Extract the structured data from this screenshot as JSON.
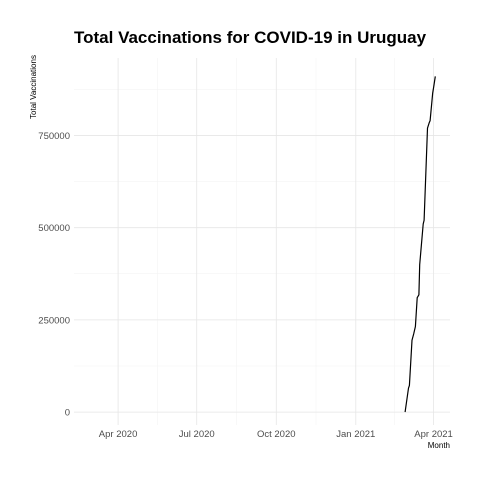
{
  "chart_data": {
    "type": "line",
    "title": "Total Vaccinations for COVID-19 in Uruguay",
    "xlabel": "Month",
    "ylabel": "Total Vaccinations",
    "xlim": [
      "2020-02-10",
      "2021-04-20"
    ],
    "ylim": [
      -35000,
      960000
    ],
    "x_ticks": [
      {
        "date": "2020-04-01",
        "label": "Apr 2020"
      },
      {
        "date": "2020-07-01",
        "label": "Jul 2020"
      },
      {
        "date": "2020-10-01",
        "label": "Oct 2020"
      },
      {
        "date": "2021-01-01",
        "label": "Jan 2021"
      },
      {
        "date": "2021-04-01",
        "label": "Apr 2021"
      }
    ],
    "y_ticks": [
      {
        "value": 0,
        "label": "0"
      },
      {
        "value": 250000,
        "label": "250000"
      },
      {
        "value": 500000,
        "label": "500000"
      },
      {
        "value": 750000,
        "label": "750000"
      }
    ],
    "grid": true,
    "legend": "none",
    "series": [
      {
        "color": "#000000",
        "x": [
          "2021-02-27",
          "2021-03-03",
          "2021-03-04",
          "2021-03-07",
          "2021-03-09",
          "2021-03-11",
          "2021-03-13",
          "2021-03-15",
          "2021-03-16",
          "2021-03-20",
          "2021-03-21",
          "2021-03-25",
          "2021-03-27",
          "2021-03-28",
          "2021-03-31",
          "2021-04-01",
          "2021-04-03"
        ],
        "y": [
          0,
          65000,
          72000,
          195000,
          212000,
          232000,
          310000,
          318000,
          400000,
          510000,
          520000,
          770000,
          785000,
          790000,
          865000,
          880000,
          910000
        ]
      }
    ]
  }
}
